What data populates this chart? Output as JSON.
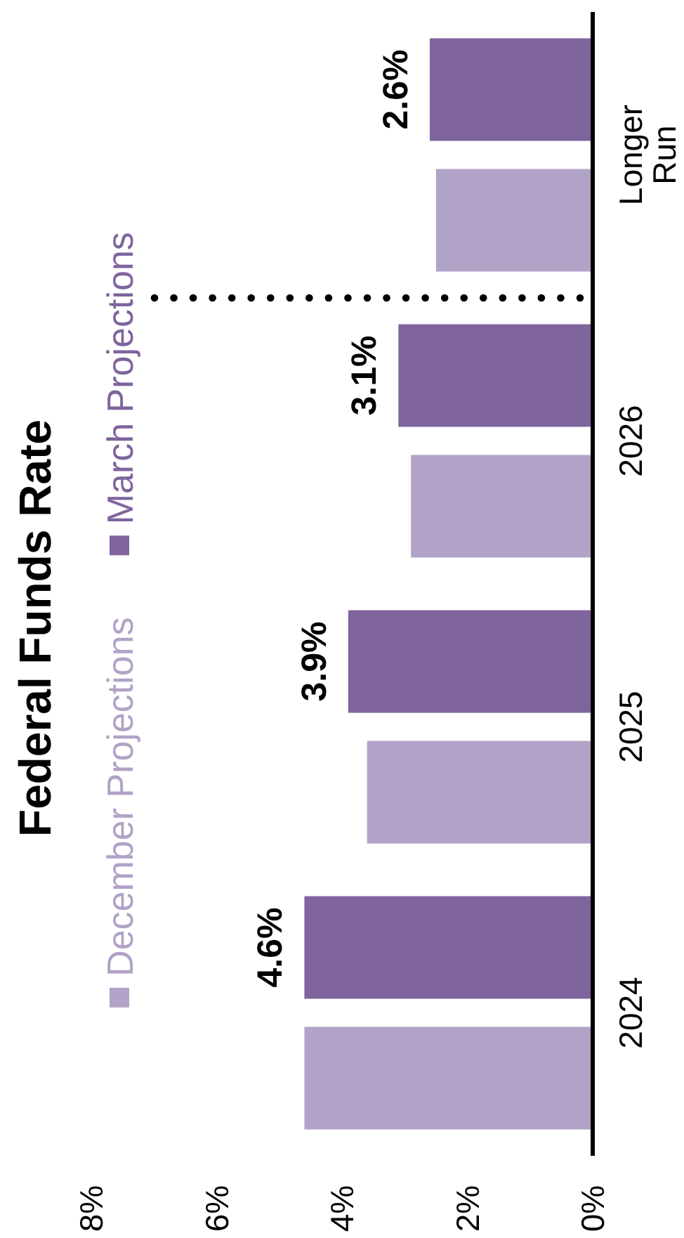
{
  "chart_data": {
    "type": "bar",
    "orientation": "horizontal",
    "title": "Federal Funds Rate",
    "categories": [
      "Longer Run",
      "2026",
      "2025",
      "2024"
    ],
    "series": [
      {
        "name": "March Projections",
        "color": "#7f649e",
        "values": [
          2.6,
          3.1,
          3.9,
          4.6
        ],
        "value_labels": [
          "2.6%",
          "3.1%",
          "3.9%",
          "4.6%"
        ]
      },
      {
        "name": "December Projections",
        "color": "#b1a2c7",
        "values": [
          2.5,
          2.9,
          3.6,
          4.6
        ]
      }
    ],
    "xlim": [
      8,
      0
    ],
    "xticks": [
      {
        "value": 8,
        "label": "8%"
      },
      {
        "value": 6,
        "label": "6%"
      },
      {
        "value": 4,
        "label": "4%"
      },
      {
        "value": 2,
        "label": "2%"
      },
      {
        "value": 0,
        "label": "0%"
      }
    ],
    "legend": "left"
  }
}
